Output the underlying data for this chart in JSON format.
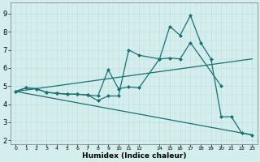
{
  "xlabel": "Humidex (Indice chaleur)",
  "bg_color": "#d4eeee",
  "grid_color": "#c0dede",
  "line_color": "#1a7070",
  "xlim": [
    -0.5,
    23.5
  ],
  "ylim": [
    1.8,
    9.6
  ],
  "yticks": [
    2,
    3,
    4,
    5,
    6,
    7,
    8,
    9
  ],
  "xtick_positions": [
    0,
    1,
    2,
    3,
    4,
    5,
    6,
    7,
    8,
    9,
    10,
    11,
    12,
    14,
    15,
    16,
    17,
    18,
    19,
    20,
    21,
    22,
    23
  ],
  "xtick_labels": [
    "0",
    "1",
    "2",
    "3",
    "4",
    "5",
    "6",
    "7",
    "8",
    "9",
    "10",
    "11",
    "12",
    "14",
    "15",
    "16",
    "17",
    "18",
    "19",
    "20",
    "21",
    "22",
    "23"
  ],
  "line1_x": [
    0,
    1,
    2,
    3,
    4,
    5,
    6,
    7,
    8,
    9,
    10,
    11,
    12,
    14,
    15,
    16,
    17,
    20
  ],
  "line1_y": [
    4.7,
    4.9,
    4.85,
    4.65,
    4.6,
    4.55,
    4.55,
    4.5,
    4.45,
    5.9,
    4.85,
    4.95,
    4.9,
    6.5,
    6.55,
    6.5,
    7.4,
    5.0
  ],
  "line2_x": [
    0,
    1,
    2,
    3,
    4,
    5,
    6,
    7,
    8,
    9,
    10,
    11,
    12,
    14,
    15,
    16,
    17,
    18,
    19,
    20,
    21,
    22,
    23
  ],
  "line2_y": [
    4.7,
    4.9,
    4.85,
    4.65,
    4.6,
    4.55,
    4.55,
    4.5,
    4.2,
    4.45,
    4.45,
    7.0,
    6.7,
    6.5,
    8.3,
    7.8,
    8.9,
    7.4,
    6.5,
    3.3,
    3.3,
    2.4,
    2.3
  ],
  "line3_x": [
    0,
    23
  ],
  "line3_y": [
    4.7,
    6.5
  ],
  "line4_x": [
    0,
    23
  ],
  "line4_y": [
    4.7,
    2.3
  ]
}
